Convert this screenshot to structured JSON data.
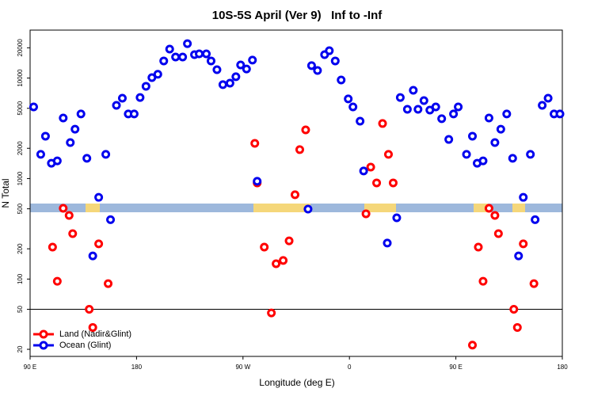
{
  "chart_data": {
    "type": "scatter",
    "title": "10S-5S April (Ver 9)   Inf to -Inf",
    "x_label": "Longitude (deg E)",
    "y_label": "N Total",
    "log_y": true,
    "legend": "bottom-left",
    "hline": 50,
    "xlim": [
      90,
      540
    ],
    "ylim": [
      17,
      30000
    ],
    "xticks": [
      {
        "value": 90,
        "label": "90 E"
      },
      {
        "value": 180,
        "label": "180"
      },
      {
        "value": 270,
        "label": "90 W"
      },
      {
        "value": 360,
        "label": "0"
      },
      {
        "value": 450,
        "label": "90 E"
      },
      {
        "value": 540,
        "label": "180"
      }
    ],
    "yticks": [
      20,
      50,
      100,
      200,
      500,
      1000,
      2000,
      5000,
      10000,
      20000
    ],
    "series": [
      {
        "name": "Land (Nadir&Glint)",
        "color": "#ff0000",
        "x": [
          109,
          113,
          118,
          123,
          126,
          140,
          143,
          148,
          156,
          280,
          282,
          288,
          294,
          298,
          304,
          309,
          314,
          318,
          323,
          374,
          378,
          383,
          388,
          393,
          397,
          464,
          469,
          473,
          478,
          483,
          486,
          499,
          502,
          507,
          516
        ],
        "values": [
          208,
          95,
          506,
          430,
          283,
          50,
          33,
          224,
          90,
          2240,
          905,
          208,
          46,
          142,
          153,
          240,
          690,
          1940,
          3050,
          446,
          1300,
          905,
          3530,
          1740,
          905,
          22,
          208,
          95,
          506,
          430,
          283,
          50,
          33,
          224,
          90
        ]
      },
      {
        "name": "Ocean (Glint)",
        "color": "#0000ee",
        "x": [
          93,
          99,
          103,
          108,
          113,
          118,
          124,
          128,
          133,
          138,
          143,
          148,
          154,
          158,
          163,
          168,
          173,
          178,
          183,
          188,
          193,
          198,
          203,
          208,
          213,
          219,
          223,
          229,
          233,
          239,
          243,
          248,
          253,
          259,
          264,
          268,
          273,
          278,
          282,
          325,
          328,
          333,
          339,
          343,
          348,
          353,
          359,
          363,
          369,
          372,
          392,
          400,
          403,
          409,
          414,
          418,
          423,
          428,
          433,
          438,
          444,
          448,
          452,
          459,
          464,
          468,
          473,
          478,
          483,
          488,
          493,
          498,
          503,
          507,
          513,
          517,
          523,
          528,
          533,
          538
        ],
        "values": [
          5160,
          1740,
          2640,
          1420,
          1500,
          4000,
          2280,
          3100,
          4390,
          1590,
          170,
          650,
          1740,
          390,
          5350,
          6300,
          4390,
          4390,
          6400,
          8280,
          10100,
          10900,
          14800,
          19400,
          16200,
          16200,
          22000,
          17100,
          17400,
          17400,
          14800,
          12100,
          8590,
          8900,
          10300,
          13500,
          12300,
          15100,
          940,
          497,
          13300,
          11900,
          17100,
          18700,
          14800,
          9570,
          6200,
          5160,
          3720,
          1190,
          228,
          407,
          6400,
          4890,
          7550,
          4890,
          5970,
          4800,
          5160,
          3940,
          2450,
          4390,
          5160,
          1740,
          2640,
          1420,
          1500,
          4000,
          2280,
          3100,
          4390,
          1590,
          170,
          650,
          1740,
          390,
          5350,
          6300,
          4390,
          4390
        ]
      }
    ]
  }
}
